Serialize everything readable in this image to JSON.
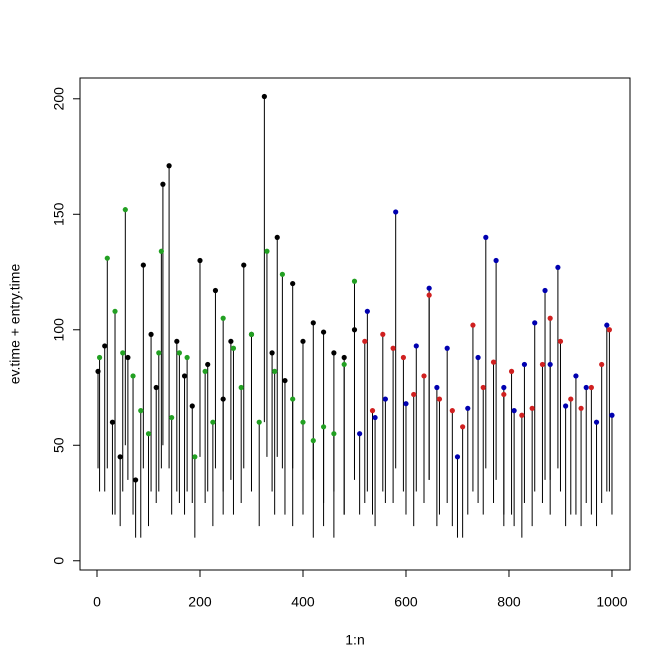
{
  "chart_data": {
    "type": "scatter",
    "x_label": "1:n",
    "y_label": "ev.time + entry.time",
    "xlim": [
      -33,
      1035
    ],
    "ylim": [
      -4,
      209
    ],
    "xticks": [
      0,
      200,
      400,
      600,
      800,
      1000
    ],
    "yticks": [
      0,
      50,
      100,
      150,
      200
    ],
    "segment_color": "#000000",
    "series": [
      {
        "color": "#000000",
        "x": [
          2,
          15,
          30,
          45,
          60,
          75,
          90,
          105,
          115,
          128,
          140,
          155,
          170,
          185,
          200,
          215,
          230,
          245,
          260,
          285,
          300,
          325,
          340,
          350,
          365,
          380,
          400,
          420,
          440,
          460,
          480,
          500
        ],
        "values": [
          82,
          93,
          60,
          45,
          88,
          35,
          128,
          98,
          75,
          163,
          171,
          95,
          80,
          67,
          130,
          85,
          117,
          70,
          95,
          128,
          98,
          201,
          90,
          140,
          78,
          120,
          95,
          103,
          99,
          90,
          88,
          100
        ],
        "base": [
          40,
          30,
          20,
          15,
          35,
          10,
          40,
          30,
          25,
          50,
          40,
          30,
          20,
          25,
          45,
          30,
          40,
          20,
          35,
          40,
          30,
          60,
          30,
          45,
          20,
          40,
          30,
          35,
          25,
          30,
          20,
          40
        ]
      },
      {
        "color": "#22a022",
        "x": [
          5,
          20,
          35,
          50,
          55,
          70,
          85,
          100,
          120,
          125,
          145,
          160,
          175,
          190,
          210,
          225,
          245,
          265,
          280,
          300,
          315,
          330,
          345,
          360,
          380,
          400,
          420,
          440,
          460,
          480,
          500
        ],
        "values": [
          88,
          131,
          108,
          90,
          152,
          80,
          65,
          55,
          90,
          134,
          62,
          90,
          88,
          45,
          82,
          60,
          105,
          92,
          75,
          98,
          60,
          134,
          82,
          124,
          70,
          60,
          52,
          58,
          55,
          85,
          121
        ],
        "base": [
          30,
          40,
          20,
          30,
          50,
          20,
          10,
          15,
          30,
          40,
          20,
          25,
          30,
          10,
          25,
          15,
          30,
          20,
          25,
          30,
          15,
          45,
          20,
          40,
          15,
          20,
          10,
          15,
          10,
          20,
          35
        ]
      },
      {
        "color": "#0000b0",
        "x": [
          510,
          525,
          540,
          560,
          580,
          600,
          620,
          645,
          660,
          680,
          700,
          720,
          740,
          755,
          775,
          790,
          810,
          830,
          850,
          870,
          880,
          895,
          910,
          930,
          950,
          970,
          990,
          1000
        ],
        "values": [
          55,
          108,
          62,
          70,
          151,
          68,
          93,
          118,
          75,
          92,
          45,
          66,
          88,
          140,
          130,
          75,
          65,
          85,
          103,
          117,
          85,
          127,
          67,
          80,
          75,
          60,
          102,
          63
        ],
        "base": [
          20,
          30,
          15,
          25,
          40,
          20,
          30,
          35,
          15,
          25,
          10,
          20,
          25,
          40,
          35,
          20,
          15,
          25,
          30,
          35,
          20,
          40,
          15,
          20,
          25,
          15,
          30,
          20
        ]
      },
      {
        "color": "#d02020",
        "x": [
          520,
          535,
          555,
          575,
          595,
          615,
          635,
          645,
          665,
          690,
          710,
          730,
          750,
          770,
          790,
          805,
          825,
          845,
          865,
          880,
          900,
          920,
          940,
          960,
          980,
          995
        ],
        "values": [
          95,
          65,
          98,
          92,
          88,
          72,
          80,
          115,
          70,
          65,
          58,
          102,
          75,
          86,
          72,
          82,
          63,
          66,
          85,
          105,
          95,
          70,
          66,
          75,
          85,
          100
        ],
        "base": [
          25,
          20,
          30,
          25,
          30,
          15,
          25,
          35,
          20,
          15,
          10,
          30,
          20,
          25,
          15,
          20,
          10,
          15,
          25,
          35,
          30,
          20,
          15,
          20,
          25,
          30
        ]
      }
    ]
  }
}
